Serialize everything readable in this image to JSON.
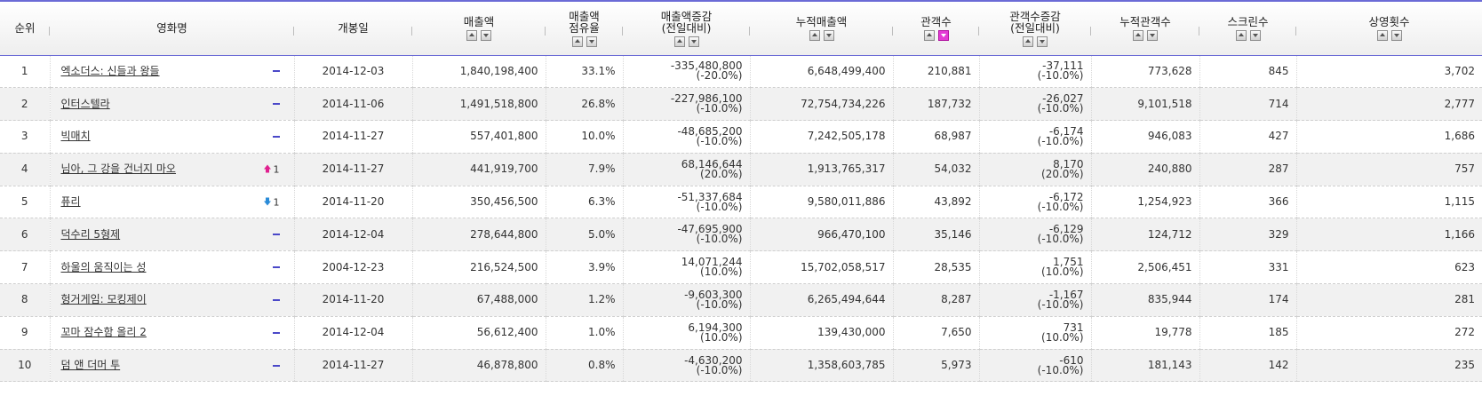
{
  "columns": [
    {
      "label": "순위",
      "sortable": false
    },
    {
      "label": "영화명",
      "sortable": false
    },
    {
      "label": "개봉일",
      "sortable": false
    },
    {
      "label": "매출액",
      "sortable": true
    },
    {
      "label": "매출액\n점유율",
      "sortable": true
    },
    {
      "label": "매출액증감\n(전일대비)",
      "sortable": true
    },
    {
      "label": "누적매출액",
      "sortable": true
    },
    {
      "label": "관객수",
      "sortable": true,
      "active_sort": "desc"
    },
    {
      "label": "관객수증감\n(전일대비)",
      "sortable": true
    },
    {
      "label": "누적관객수",
      "sortable": true
    },
    {
      "label": "스크린수",
      "sortable": true
    },
    {
      "label": "상영횟수",
      "sortable": true
    }
  ],
  "colors": {
    "accent": "#6b6bd6",
    "sort_active": "#e43ad5",
    "rank_up": "#e0208f",
    "rank_down": "#2a8bd8",
    "rank_same": "#4a48c8"
  },
  "rows": [
    {
      "rank": "1",
      "title": "엑소더스: 신들과 왕들",
      "change": {
        "dir": "same",
        "value": ""
      },
      "open": "2014-12-03",
      "sales": "1,840,198,400",
      "share": "33.1%",
      "sales_diff": "-335,480,800",
      "sales_diff_pct": "(-20.0%)",
      "acc_sales": "6,648,499,400",
      "audience": "210,881",
      "aud_diff": "-37,111",
      "aud_diff_pct": "(-10.0%)",
      "acc_aud": "773,628",
      "screens": "845",
      "shows": "3,702"
    },
    {
      "rank": "2",
      "title": "인터스텔라",
      "change": {
        "dir": "same",
        "value": ""
      },
      "open": "2014-11-06",
      "sales": "1,491,518,800",
      "share": "26.8%",
      "sales_diff": "-227,986,100",
      "sales_diff_pct": "(-10.0%)",
      "acc_sales": "72,754,734,226",
      "audience": "187,732",
      "aud_diff": "-26,027",
      "aud_diff_pct": "(-10.0%)",
      "acc_aud": "9,101,518",
      "screens": "714",
      "shows": "2,777"
    },
    {
      "rank": "3",
      "title": "빅매치",
      "change": {
        "dir": "same",
        "value": ""
      },
      "open": "2014-11-27",
      "sales": "557,401,800",
      "share": "10.0%",
      "sales_diff": "-48,685,200",
      "sales_diff_pct": "(-10.0%)",
      "acc_sales": "7,242,505,178",
      "audience": "68,987",
      "aud_diff": "-6,174",
      "aud_diff_pct": "(-10.0%)",
      "acc_aud": "946,083",
      "screens": "427",
      "shows": "1,686"
    },
    {
      "rank": "4",
      "title": "님아, 그 강을 건너지 마오",
      "change": {
        "dir": "up",
        "value": "1"
      },
      "open": "2014-11-27",
      "sales": "441,919,700",
      "share": "7.9%",
      "sales_diff": "68,146,644",
      "sales_diff_pct": "(20.0%)",
      "acc_sales": "1,913,765,317",
      "audience": "54,032",
      "aud_diff": "8,170",
      "aud_diff_pct": "(20.0%)",
      "acc_aud": "240,880",
      "screens": "287",
      "shows": "757"
    },
    {
      "rank": "5",
      "title": "퓨리",
      "change": {
        "dir": "down",
        "value": "1"
      },
      "open": "2014-11-20",
      "sales": "350,456,500",
      "share": "6.3%",
      "sales_diff": "-51,337,684",
      "sales_diff_pct": "(-10.0%)",
      "acc_sales": "9,580,011,886",
      "audience": "43,892",
      "aud_diff": "-6,172",
      "aud_diff_pct": "(-10.0%)",
      "acc_aud": "1,254,923",
      "screens": "366",
      "shows": "1,115"
    },
    {
      "rank": "6",
      "title": "덕수리 5형제",
      "change": {
        "dir": "same",
        "value": ""
      },
      "open": "2014-12-04",
      "sales": "278,644,800",
      "share": "5.0%",
      "sales_diff": "-47,695,900",
      "sales_diff_pct": "(-10.0%)",
      "acc_sales": "966,470,100",
      "audience": "35,146",
      "aud_diff": "-6,129",
      "aud_diff_pct": "(-10.0%)",
      "acc_aud": "124,712",
      "screens": "329",
      "shows": "1,166"
    },
    {
      "rank": "7",
      "title": "하울의 움직이는 성",
      "change": {
        "dir": "same",
        "value": ""
      },
      "open": "2004-12-23",
      "sales": "216,524,500",
      "share": "3.9%",
      "sales_diff": "14,071,244",
      "sales_diff_pct": "(10.0%)",
      "acc_sales": "15,702,058,517",
      "audience": "28,535",
      "aud_diff": "1,751",
      "aud_diff_pct": "(10.0%)",
      "acc_aud": "2,506,451",
      "screens": "331",
      "shows": "623"
    },
    {
      "rank": "8",
      "title": "헝거게임: 모킹제이",
      "change": {
        "dir": "same",
        "value": ""
      },
      "open": "2014-11-20",
      "sales": "67,488,000",
      "share": "1.2%",
      "sales_diff": "-9,603,300",
      "sales_diff_pct": "(-10.0%)",
      "acc_sales": "6,265,494,644",
      "audience": "8,287",
      "aud_diff": "-1,167",
      "aud_diff_pct": "(-10.0%)",
      "acc_aud": "835,944",
      "screens": "174",
      "shows": "281"
    },
    {
      "rank": "9",
      "title": "꼬마 잠수함 올리 2",
      "change": {
        "dir": "same",
        "value": ""
      },
      "open": "2014-12-04",
      "sales": "56,612,400",
      "share": "1.0%",
      "sales_diff": "6,194,300",
      "sales_diff_pct": "(10.0%)",
      "acc_sales": "139,430,000",
      "audience": "7,650",
      "aud_diff": "731",
      "aud_diff_pct": "(10.0%)",
      "acc_aud": "19,778",
      "screens": "185",
      "shows": "272"
    },
    {
      "rank": "10",
      "title": "덤 앤 더머 투",
      "change": {
        "dir": "same",
        "value": ""
      },
      "open": "2014-11-27",
      "sales": "46,878,800",
      "share": "0.8%",
      "sales_diff": "-4,630,200",
      "sales_diff_pct": "(-10.0%)",
      "acc_sales": "1,358,603,785",
      "audience": "5,973",
      "aud_diff": "-610",
      "aud_diff_pct": "(-10.0%)",
      "acc_aud": "181,143",
      "screens": "142",
      "shows": "235"
    }
  ]
}
